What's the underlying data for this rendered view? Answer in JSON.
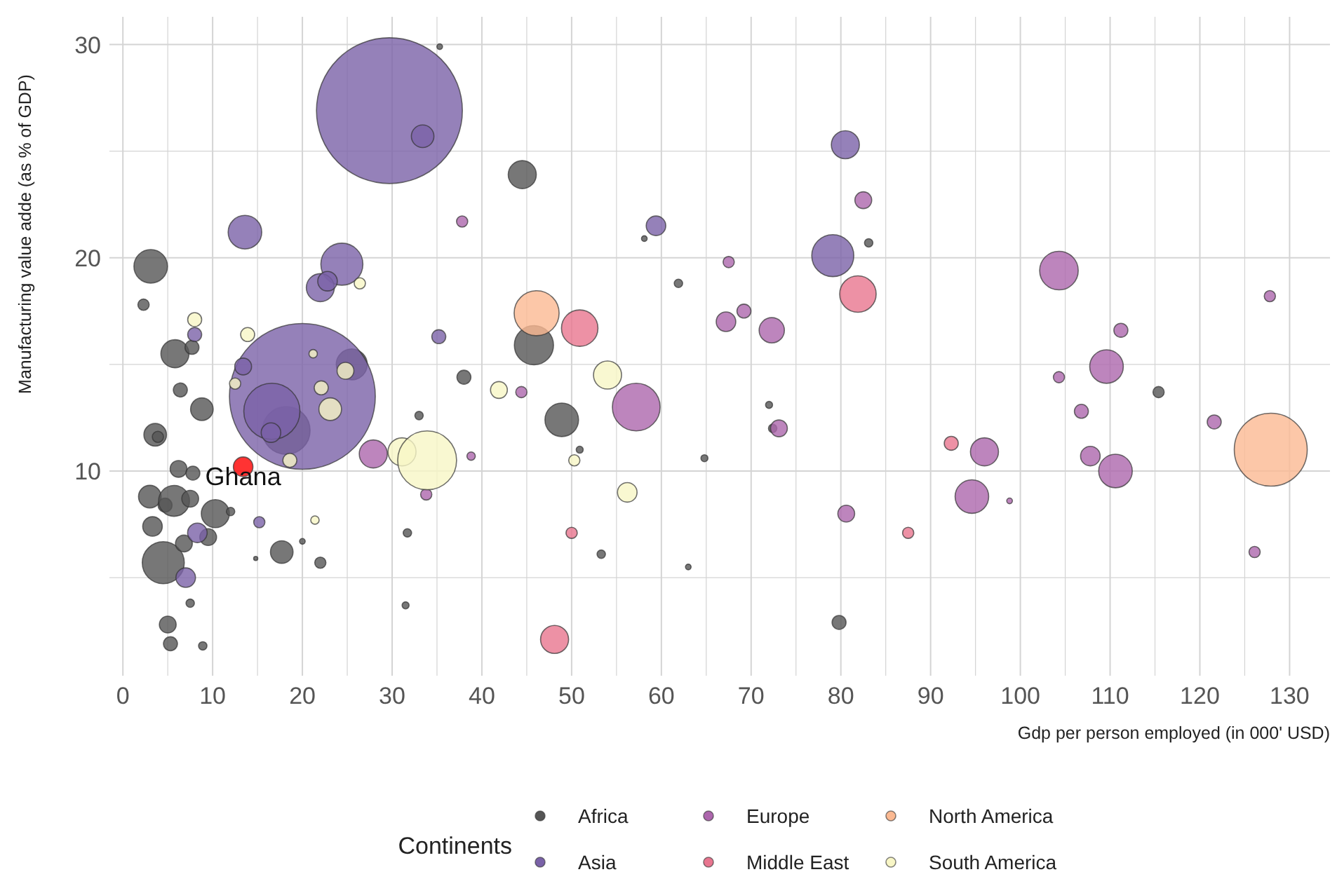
{
  "chart_data": {
    "type": "bubble",
    "xlabel": "Gdp per person employed (in 000' USD)",
    "ylabel": "Manufacturing value adde (as % of GDP)",
    "legend_title": "Continents",
    "legend": "bottom",
    "grid": true,
    "marker": "circle",
    "xlim": [
      -1.5,
      134.5
    ],
    "xticks": [
      0,
      {
        "value": 5,
        "label": null
      },
      10,
      {
        "value": 15,
        "label": null
      },
      20,
      {
        "value": 25,
        "label": null
      },
      30,
      {
        "value": 35,
        "label": null
      },
      40,
      {
        "value": 45,
        "label": null
      },
      50,
      {
        "value": 55,
        "label": null
      },
      60,
      {
        "value": 65,
        "label": null
      },
      70,
      {
        "value": 75,
        "label": null
      },
      80,
      {
        "value": 85,
        "label": null
      },
      90,
      {
        "value": 95,
        "label": null
      },
      100,
      {
        "value": 105,
        "label": null
      },
      110,
      {
        "value": 115,
        "label": null
      },
      120,
      {
        "value": 125,
        "label": null
      },
      130
    ],
    "ylim": [
      0.4,
      31.3
    ],
    "yticks": [
      {
        "value": 5,
        "label": null
      },
      10,
      {
        "value": 15,
        "label": null
      },
      20,
      {
        "value": 25,
        "label": null
      },
      30
    ],
    "annotations": [
      {
        "text": "Ghana",
        "x": 13.4,
        "y": 10.2
      }
    ],
    "series": [
      {
        "name": "Africa",
        "color": "#555555",
        "x": [
          3.1,
          2.3,
          35.3,
          44.5,
          58.1,
          61.9,
          45.8,
          38.0,
          48.9,
          50.9,
          64.8,
          72.0,
          72.4,
          53.3,
          63.0,
          79.8,
          83.1,
          115.4,
          33.0,
          31.7,
          31.5,
          22.0,
          20.0,
          14.8,
          17.7,
          8.9,
          5.3,
          5.0,
          7.5,
          4.5,
          3.0,
          4.7,
          5.7,
          7.5,
          3.3,
          6.2,
          7.8,
          3.6,
          3.9,
          6.4,
          8.8,
          5.8,
          7.7,
          10.3,
          12.0,
          9.5,
          6.8,
          25.5,
          18.2
        ],
        "values": [
          19.6,
          17.8,
          29.9,
          23.9,
          20.9,
          18.8,
          15.9,
          14.4,
          12.4,
          11.0,
          10.6,
          13.1,
          12.0,
          6.1,
          5.5,
          2.9,
          20.7,
          13.7,
          12.6,
          7.1,
          3.7,
          5.7,
          6.7,
          5.9,
          6.2,
          1.8,
          1.9,
          2.8,
          3.8,
          5.7,
          8.8,
          8.4,
          8.6,
          8.7,
          7.4,
          10.1,
          9.9,
          11.7,
          11.6,
          13.8,
          12.9,
          15.5,
          15.8,
          8.0,
          8.1,
          6.9,
          6.6,
          15.0,
          11.9
        ],
        "sizes": [
          0.053,
          0.006,
          0.0015,
          0.037,
          0.0015,
          0.0033,
          0.072,
          0.0092,
          0.053,
          0.0023,
          0.0023,
          0.0023,
          0.0033,
          0.0033,
          0.0015,
          0.0092,
          0.0033,
          0.0059,
          0.0033,
          0.0033,
          0.0023,
          0.0059,
          0.0015,
          0.0008,
          0.024,
          0.0033,
          0.0092,
          0.0133,
          0.0033,
          0.083,
          0.024,
          0.0092,
          0.045,
          0.0133,
          0.018,
          0.0133,
          0.0092,
          0.024,
          0.0059,
          0.0092,
          0.024,
          0.037,
          0.0092,
          0.037,
          0.0033,
          0.0133,
          0.0133,
          0.045,
          0.107
        ]
      },
      {
        "name": "Asia",
        "color": "#7a62a8",
        "x": [
          29.7,
          33.4,
          13.6,
          24.4,
          22.0,
          22.8,
          8.0,
          35.2,
          20.0,
          15.2,
          8.3,
          7.0,
          59.4,
          80.5,
          79.1,
          16.6,
          16.5,
          13.4
        ],
        "values": [
          26.9,
          25.7,
          21.2,
          19.7,
          18.6,
          18.9,
          16.4,
          16.3,
          13.5,
          7.6,
          7.1,
          5.0,
          21.5,
          25.3,
          20.1,
          12.8,
          11.8,
          14.9
        ],
        "sizes": [
          1,
          0.024,
          0.053,
          0.083,
          0.037,
          0.018,
          0.0092,
          0.0092,
          1,
          0.0059,
          0.018,
          0.018,
          0.018,
          0.037,
          0.083,
          0.148,
          0.018,
          0.0133
        ]
      },
      {
        "name": "Europe",
        "color": "#ad66ad",
        "x": [
          37.8,
          44.4,
          38.8,
          57.2,
          67.2,
          69.2,
          67.5,
          72.3,
          73.1,
          80.6,
          82.5,
          27.9,
          33.8,
          104.3,
          127.8,
          111.2,
          109.6,
          104.3,
          106.8,
          121.6,
          107.8,
          110.6,
          96.0,
          94.6,
          98.8,
          126.1
        ],
        "values": [
          21.7,
          13.7,
          10.7,
          13.0,
          17.0,
          17.5,
          19.8,
          16.6,
          12.0,
          8.0,
          22.7,
          10.8,
          8.9,
          19.4,
          18.2,
          16.6,
          14.9,
          14.4,
          12.8,
          12.3,
          10.7,
          10.0,
          10.9,
          8.8,
          8.6,
          6.2
        ],
        "sizes": [
          0.0059,
          0.0059,
          0.0033,
          0.107,
          0.018,
          0.0092,
          0.0059,
          0.03,
          0.0133,
          0.0133,
          0.0133,
          0.037,
          0.0059,
          0.07,
          0.0059,
          0.0092,
          0.053,
          0.0059,
          0.0092,
          0.0092,
          0.018,
          0.053,
          0.037,
          0.053,
          0.0015,
          0.0059
        ]
      },
      {
        "name": "Middle East",
        "color": "#e8758f",
        "x": [
          50.9,
          81.9,
          50.0,
          48.1,
          92.3,
          87.5
        ],
        "values": [
          16.7,
          18.3,
          7.1,
          2.1,
          11.3,
          7.1
        ],
        "sizes": [
          0.0625,
          0.0625,
          0.0059,
          0.037,
          0.0092,
          0.0059
        ]
      },
      {
        "name": "North America",
        "color": "#fbb992",
        "x": [
          46.1,
          127.9
        ],
        "values": [
          17.4,
          11.0
        ],
        "sizes": [
          0.095,
          0.25
        ]
      },
      {
        "name": "South America",
        "color": "#f8f6c6",
        "x": [
          8.0,
          13.9,
          26.4,
          31.1,
          33.9,
          21.4,
          22.1,
          23.1,
          24.8,
          18.6,
          21.2,
          41.9,
          54.0,
          56.2,
          50.3,
          12.5
        ],
        "values": [
          17.1,
          16.4,
          18.8,
          10.9,
          10.5,
          7.7,
          13.9,
          12.9,
          14.7,
          10.5,
          15.5,
          13.8,
          14.5,
          9.0,
          10.5,
          14.1
        ],
        "sizes": [
          0.0092,
          0.0092,
          0.0059,
          0.037,
          0.163,
          0.0033,
          0.0092,
          0.024,
          0.0133,
          0.0092,
          0.0033,
          0.0133,
          0.037,
          0.018,
          0.0059,
          0.0059
        ]
      },
      {
        "color": "#ff0000",
        "x": [
          13.4
        ],
        "values": [
          10.2
        ],
        "sizes": [
          0.018
        ]
      }
    ]
  }
}
